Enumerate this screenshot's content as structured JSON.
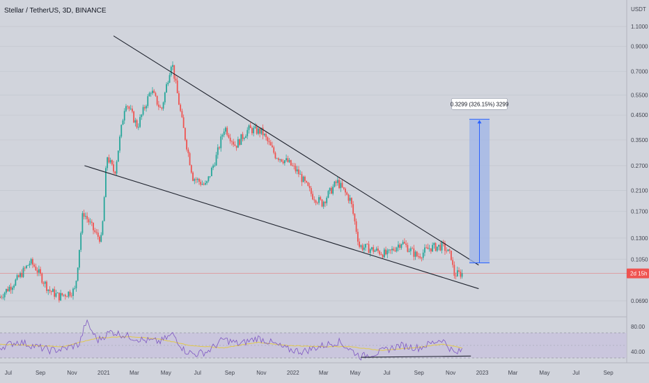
{
  "header": {
    "symbol_title": "Stellar / TetherUS, 3D, BINANCE",
    "currency": "USDT"
  },
  "chart_data": {
    "type": "candlestick",
    "title": "Stellar / TetherUS, 3D, BINANCE",
    "price_axis": {
      "scale": "log",
      "tick_labels": [
        "1.1000",
        "0.9000",
        "0.7000",
        "0.5500",
        "0.4500",
        "0.3500",
        "0.2700",
        "0.2100",
        "0.1700",
        "0.1300",
        "0.1050",
        "0.0690"
      ],
      "ticks": [
        1.1,
        0.9,
        0.7,
        0.55,
        0.45,
        0.35,
        0.27,
        0.21,
        0.17,
        0.13,
        0.105,
        0.069
      ]
    },
    "time_axis": {
      "labels": [
        "Jul",
        "Sep",
        "Nov",
        "2021",
        "Mar",
        "May",
        "Jul",
        "Sep",
        "Nov",
        "2022",
        "Mar",
        "May",
        "Jul",
        "Sep",
        "Nov",
        "2023",
        "Mar",
        "May",
        "Jul",
        "Sep"
      ]
    },
    "current_price_label": "2d 15h",
    "grid": true,
    "price_points": [
      [
        "2020-06-15",
        0.071
      ],
      [
        "2020-07-20",
        0.085
      ],
      [
        "2020-08-15",
        0.102
      ],
      [
        "2020-08-25",
        0.097
      ],
      [
        "2020-09-20",
        0.077
      ],
      [
        "2020-10-10",
        0.072
      ],
      [
        "2020-11-10",
        0.077
      ],
      [
        "2020-11-25",
        0.17
      ],
      [
        "2020-12-20",
        0.135
      ],
      [
        "2020-12-31",
        0.128
      ],
      [
        "2021-01-10",
        0.3
      ],
      [
        "2021-01-25",
        0.25
      ],
      [
        "2021-02-15",
        0.52
      ],
      [
        "2021-03-10",
        0.4
      ],
      [
        "2021-04-05",
        0.58
      ],
      [
        "2021-04-25",
        0.47
      ],
      [
        "2021-05-15",
        0.78
      ],
      [
        "2021-06-05",
        0.41
      ],
      [
        "2021-06-25",
        0.24
      ],
      [
        "2021-07-20",
        0.22
      ],
      [
        "2021-08-10",
        0.3
      ],
      [
        "2021-08-25",
        0.4
      ],
      [
        "2021-09-15",
        0.33
      ],
      [
        "2021-10-10",
        0.39
      ],
      [
        "2021-11-05",
        0.38
      ],
      [
        "2021-12-01",
        0.3
      ],
      [
        "2021-12-25",
        0.28
      ],
      [
        "2022-01-15",
        0.25
      ],
      [
        "2022-02-10",
        0.2
      ],
      [
        "2022-03-01",
        0.185
      ],
      [
        "2022-03-30",
        0.23
      ],
      [
        "2022-04-25",
        0.19
      ],
      [
        "2022-05-12",
        0.12
      ],
      [
        "2022-06-10",
        0.115
      ],
      [
        "2022-07-05",
        0.11
      ],
      [
        "2022-08-01",
        0.125
      ],
      [
        "2022-09-01",
        0.108
      ],
      [
        "2022-09-25",
        0.118
      ],
      [
        "2022-10-20",
        0.12
      ],
      [
        "2022-11-05",
        0.108
      ],
      [
        "2022-11-10",
        0.09
      ],
      [
        "2022-11-25",
        0.091
      ]
    ],
    "trendlines": [
      {
        "name": "upper",
        "from": [
          "2021-01-20",
          1.0
        ],
        "to": [
          "2022-12-25",
          0.099
        ]
      },
      {
        "name": "lower",
        "from": [
          "2020-11-25",
          0.27
        ],
        "to": [
          "2022-12-25",
          0.078
        ]
      }
    ],
    "measure_tool": {
      "label": "0.3299 (326.15%) 3299",
      "from_price": 0.1012,
      "to_price": 0.4311
    },
    "rsi": {
      "tick_labels": [
        "80.00",
        "40.00"
      ],
      "ticks": [
        80,
        40
      ],
      "upper_band": 70,
      "lower_band": 30,
      "rsi_points": [
        [
          "2020-06-15",
          47
        ],
        [
          "2020-07-20",
          56
        ],
        [
          "2020-08-20",
          49
        ],
        [
          "2020-09-20",
          42
        ],
        [
          "2020-10-15",
          44
        ],
        [
          "2020-11-15",
          52
        ],
        [
          "2020-11-28",
          88
        ],
        [
          "2020-12-20",
          58
        ],
        [
          "2021-01-15",
          72
        ],
        [
          "2021-02-20",
          64
        ],
        [
          "2021-03-20",
          58
        ],
        [
          "2021-04-20",
          56
        ],
        [
          "2021-05-15",
          68
        ],
        [
          "2021-06-05",
          42
        ],
        [
          "2021-06-25",
          36
        ],
        [
          "2021-07-20",
          40
        ],
        [
          "2021-08-20",
          60
        ],
        [
          "2021-09-20",
          52
        ],
        [
          "2021-10-25",
          62
        ],
        [
          "2021-11-15",
          56
        ],
        [
          "2021-12-20",
          44
        ],
        [
          "2022-01-20",
          40
        ],
        [
          "2022-02-20",
          48
        ],
        [
          "2022-03-30",
          56
        ],
        [
          "2022-04-20",
          44
        ],
        [
          "2022-05-12",
          32
        ],
        [
          "2022-06-20",
          40
        ],
        [
          "2022-07-25",
          50
        ],
        [
          "2022-09-01",
          46
        ],
        [
          "2022-10-15",
          60
        ],
        [
          "2022-11-10",
          36
        ],
        [
          "2022-11-25",
          44
        ]
      ],
      "rsi_ma_points": [
        [
          "2020-06-15",
          52
        ],
        [
          "2020-08-15",
          50
        ],
        [
          "2020-10-15",
          48
        ],
        [
          "2020-12-20",
          62
        ],
        [
          "2021-02-20",
          64
        ],
        [
          "2021-04-20",
          60
        ],
        [
          "2021-06-15",
          50
        ],
        [
          "2021-08-20",
          46
        ],
        [
          "2021-10-25",
          55
        ],
        [
          "2021-12-20",
          50
        ],
        [
          "2022-02-20",
          48
        ],
        [
          "2022-04-20",
          48
        ],
        [
          "2022-06-20",
          42
        ],
        [
          "2022-08-20",
          46
        ],
        [
          "2022-10-15",
          52
        ],
        [
          "2022-11-25",
          46
        ]
      ],
      "divergence_line": {
        "from": [
          "2022-05-12",
          31
        ],
        "to": [
          "2022-12-10",
          33
        ]
      }
    }
  },
  "colors": {
    "background": "#d1d4dc",
    "grid": "#c3c6ce",
    "up_candle": "#26a69a",
    "down_candle": "#ef5350",
    "trendline": "#1e222d",
    "measure_fill": "#9fb6e8",
    "measure_stroke": "#2962ff",
    "rsi_line": "#7e57c2",
    "rsi_ma_line": "#e2c94a",
    "rsi_band_fill": "#c7c1dd",
    "price_line": "#ef5350",
    "axis_text": "#434651"
  }
}
